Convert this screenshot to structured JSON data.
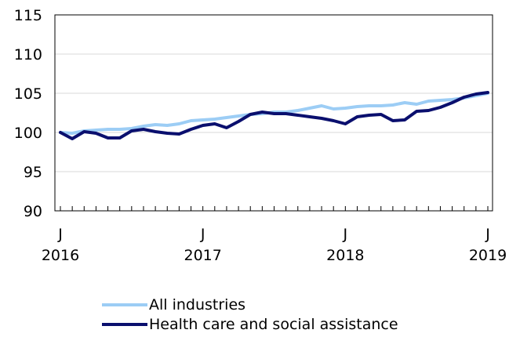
{
  "chart_data": {
    "type": "line",
    "title": "",
    "xlabel": "",
    "ylabel": "",
    "ylim": [
      90,
      115
    ],
    "yticks": [
      "90",
      "95",
      "100",
      "105",
      "110",
      "115"
    ],
    "xticks": [
      {
        "month": "J",
        "year": "2016",
        "index": 0
      },
      {
        "month": "J",
        "year": "2017",
        "index": 12
      },
      {
        "month": "J",
        "year": "2018",
        "index": 24
      },
      {
        "month": "J",
        "year": "2019",
        "index": 36
      }
    ],
    "grid": "horizontal",
    "legend": "bottom",
    "x": [
      "2016-01",
      "2016-02",
      "2016-03",
      "2016-04",
      "2016-05",
      "2016-06",
      "2016-07",
      "2016-08",
      "2016-09",
      "2016-10",
      "2016-11",
      "2016-12",
      "2017-01",
      "2017-02",
      "2017-03",
      "2017-04",
      "2017-05",
      "2017-06",
      "2017-07",
      "2017-08",
      "2017-09",
      "2017-10",
      "2017-11",
      "2017-12",
      "2018-01",
      "2018-02",
      "2018-03",
      "2018-04",
      "2018-05",
      "2018-06",
      "2018-07",
      "2018-08",
      "2018-09",
      "2018-10",
      "2018-11",
      "2018-12",
      "2019-01"
    ],
    "series": [
      {
        "name": "All industries",
        "color": "#9ccdf5",
        "values": [
          100.0,
          99.9,
          100.2,
          100.3,
          100.4,
          100.4,
          100.5,
          100.8,
          101.0,
          100.9,
          101.1,
          101.5,
          101.6,
          101.7,
          101.9,
          102.1,
          102.3,
          102.4,
          102.6,
          102.6,
          102.8,
          103.1,
          103.4,
          103.0,
          103.1,
          103.3,
          103.4,
          103.4,
          103.5,
          103.8,
          103.6,
          104.0,
          104.1,
          104.2,
          104.4,
          104.7,
          105.0
        ]
      },
      {
        "name": "Health care and social assistance",
        "color": "#0a0f6e",
        "values": [
          100.0,
          99.2,
          100.1,
          99.9,
          99.3,
          99.3,
          100.2,
          100.4,
          100.1,
          99.9,
          99.8,
          100.4,
          100.9,
          101.1,
          100.6,
          101.4,
          102.3,
          102.6,
          102.4,
          102.4,
          102.2,
          102.0,
          101.8,
          101.5,
          101.1,
          102.0,
          102.2,
          102.3,
          101.5,
          101.6,
          102.7,
          102.8,
          103.2,
          103.8,
          104.5,
          104.9,
          105.1
        ]
      }
    ]
  }
}
